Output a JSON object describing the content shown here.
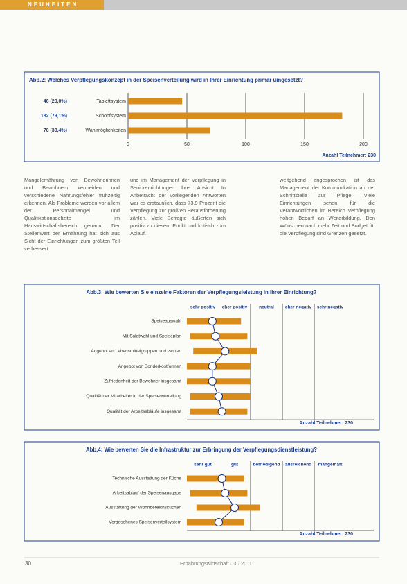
{
  "header": {
    "section": "NEUHEITEN"
  },
  "chart_data": [
    {
      "type": "bar",
      "title": "Abb.2: Welches Verpflegungskonzept in der Speisenverteilung wird in Ihrer Einrichtung primär umgesetzt?",
      "categories": [
        "Tablettsystem",
        "Schöpfsystem",
        "Wahlmöglichkeiten"
      ],
      "values": [
        46,
        182,
        70
      ],
      "value_labels": [
        "46 (20,0%)",
        "182 (79,1%)",
        "70 (30,4%)"
      ],
      "color": "#d98c1a",
      "xlim": [
        0,
        200
      ],
      "xticks": [
        0,
        50,
        100,
        150,
        200
      ],
      "grid": true,
      "note": "Anzahl Teilnehmer: 230"
    },
    {
      "type": "rating",
      "title": "Abb.3: Wie bewerten Sie einzelne Faktoren der Verpflegungsleistung in Ihrer Einrichtung?",
      "categories": [
        "Speiseauswahl",
        "Mit Salatwahl und Speiseplan",
        "Angebot an Lebensmittelgruppen und -sorten",
        "Angebot von Sonderkostformen",
        "Zufriedenheit der Bewohner insgesamt",
        "Qualität der Mitarbeiter in der Speisenverteilung",
        "Qualität der Arbeitsabläufe insgesamt"
      ],
      "values": [
        1.3,
        1.4,
        1.7,
        1.3,
        1.3,
        1.5,
        1.6
      ],
      "low": [
        0.5,
        0.6,
        0.7,
        0.5,
        0.5,
        0.6,
        0.6
      ],
      "high": [
        2.2,
        2.4,
        2.7,
        2.5,
        2.5,
        2.5,
        2.4
      ],
      "color": "#d98c1a",
      "line_color": "#1a2f7a",
      "xlim": [
        0.5,
        5.5
      ],
      "xticks": [
        {
          "value": 1,
          "label": "sehr positiv"
        },
        {
          "value": 2,
          "label": "eher positiv"
        },
        {
          "value": 3,
          "label": "neutral"
        },
        {
          "value": 4,
          "label": "eher negativ"
        },
        {
          "value": 5,
          "label": "sehr negativ"
        }
      ],
      "note": "Anzahl Teilnehmer: 230"
    },
    {
      "type": "rating",
      "title": "Abb.4: Wie bewerten Sie die Infrastruktur zur Erbringung der Verpflegungsdienstleistung?",
      "categories": [
        "Technische Ausstattung der Küche",
        "Arbeitsablauf der Speisenausgabe",
        "Ausstattung der Wohnbereichsküchen",
        "Vorgesehenes Speisenverteilsystem"
      ],
      "values": [
        1.6,
        1.7,
        2.0,
        1.5
      ],
      "low": [
        0.5,
        0.6,
        0.8,
        0.5
      ],
      "high": [
        2.3,
        2.4,
        2.8,
        2.3
      ],
      "color": "#d98c1a",
      "line_color": "#1a2f7a",
      "xlim": [
        0.5,
        5.5
      ],
      "xticks": [
        {
          "value": 1,
          "label": "sehr gut"
        },
        {
          "value": 2,
          "label": "gut"
        },
        {
          "value": 3,
          "label": "befriedigend"
        },
        {
          "value": 4,
          "label": "ausreichend"
        },
        {
          "value": 5,
          "label": "mangelhaft"
        }
      ],
      "note": "Anzahl Teilnehmer: 230"
    }
  ],
  "body": {
    "columns": [
      "Mangelernährung von Bewohnerinnen und Bewohnern vermeiden und verschiedene Nahrungsfehler frühzeitig erkennen. Als Probleme werden vor allem der Personalmangel und Qualifikationsdefizite im Hauswirtschaftsbereich genannt. Der Stellenwert der Ernährung hat sich aus Sicht der Einrichtungen zum größten Teil verbessert.",
      "und im Management der Verpflegung in Seniorenrichtungen Ihrer Ansicht. In Anbetracht der vorliegenden Antworten war es erstaunlich, dass 73,9 Prozent die Verpflegung zur größten Herausforderung zählen. Viele Befragte äußerten sich positiv zu diesem Punkt und kritisch zum Ablauf.",
      "weitgehend angesprochen ist das Management der Kommunikation an der Schnittstelle zur Pflege. Viele Einrichtungen sehen für die Verantwortlichen im Bereich Verpflegung hohen Bedarf an Weiterbildung. Den Wünschen nach mehr Zeit und Budget für die Verpflegung sind Grenzen gesetzt."
    ]
  },
  "footer": {
    "page": "30",
    "source": "Ernährungswirtschaft · 3 · 2011"
  }
}
